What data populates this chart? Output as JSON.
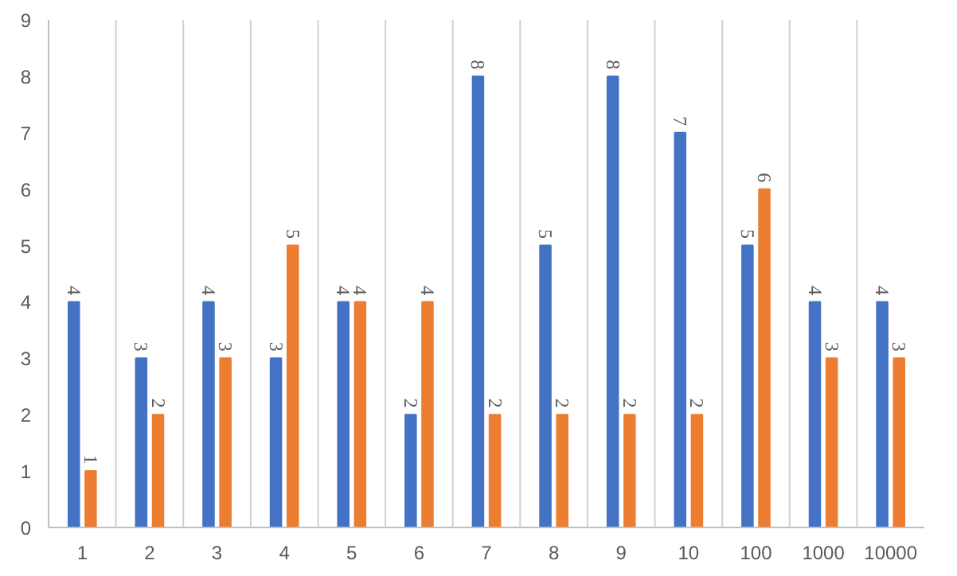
{
  "chart_data": {
    "type": "bar",
    "categories": [
      "1",
      "2",
      "3",
      "4",
      "5",
      "6",
      "7",
      "8",
      "9",
      "10",
      "100",
      "1000",
      "10000"
    ],
    "series": [
      {
        "color": "#4472c4",
        "values": [
          4,
          3,
          4,
          3,
          4,
          2,
          8,
          5,
          8,
          7,
          5,
          4,
          4
        ]
      },
      {
        "color": "#ed7d31",
        "values": [
          1,
          2,
          3,
          5,
          4,
          4,
          2,
          2,
          2,
          2,
          6,
          3,
          3
        ]
      }
    ],
    "ylim": [
      0,
      9
    ],
    "yticks": [
      0,
      1,
      2,
      3,
      4,
      5,
      6,
      7,
      8,
      9
    ],
    "grid": "x",
    "data_labels": true
  }
}
